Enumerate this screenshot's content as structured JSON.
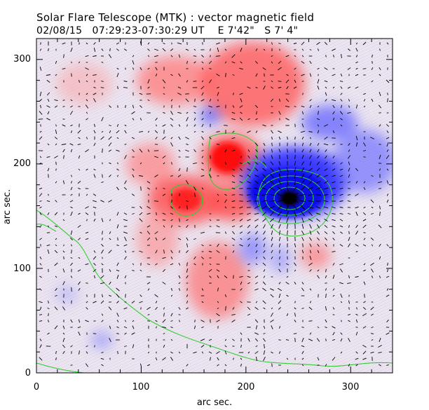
{
  "header": {
    "title_line1": "Solar Flare Telescope (MTK) : vector magnetic field",
    "date": "02/08/15",
    "time_range": "07:29:23-07:30:29 UT",
    "position_ew": "E 7'42\"",
    "position_ns": "S 7' 4\""
  },
  "axes": {
    "x_title": "arc sec.",
    "y_title": "arc sec.",
    "x_ticks": [
      "0",
      "100",
      "200",
      "300"
    ],
    "y_ticks": [
      "0",
      "100",
      "200",
      "300"
    ],
    "x_range": [
      0,
      340
    ],
    "y_range": [
      0,
      320
    ]
  },
  "colors": {
    "positive_polarity": "#ff3a3a",
    "negative_polarity": "#2626ff",
    "umbra": "#000000",
    "contours": "#33cc33",
    "vectors": "#000000"
  }
}
